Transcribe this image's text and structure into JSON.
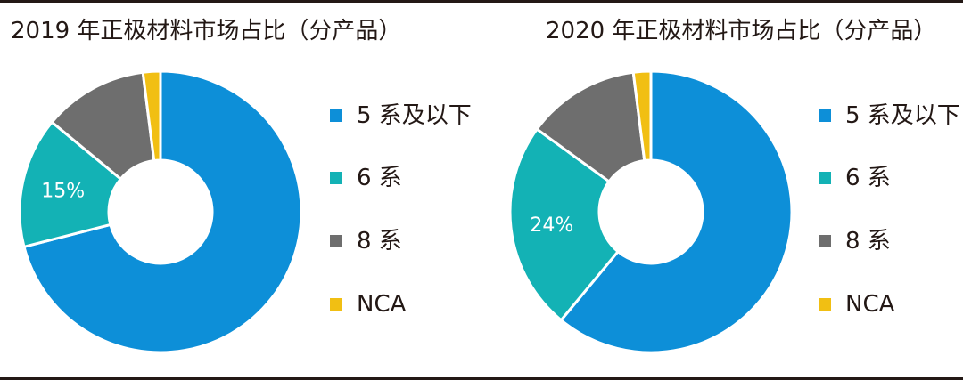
{
  "chart_data": [
    {
      "type": "pie",
      "title": "2019 年正极材料市场占比（分产品）",
      "categories": [
        "5 系及以下",
        "6 系",
        "8 系",
        "NCA"
      ],
      "values": [
        71,
        15,
        12,
        2
      ],
      "colors": [
        "#0d8fd8",
        "#13b2b5",
        "#6e6e6e",
        "#f1bf13"
      ],
      "data_labels": [
        "",
        "15%",
        "",
        ""
      ],
      "legend_position": "right"
    },
    {
      "type": "pie",
      "title": "2020 年正极材料市场占比（分产品）",
      "categories": [
        "5 系及以下",
        "6 系",
        "8 系",
        "NCA"
      ],
      "values": [
        61,
        24,
        13,
        2
      ],
      "colors": [
        "#0d8fd8",
        "#13b2b5",
        "#6e6e6e",
        "#f1bf13"
      ],
      "data_labels": [
        "",
        "24%",
        "",
        ""
      ],
      "legend_position": "right"
    }
  ]
}
